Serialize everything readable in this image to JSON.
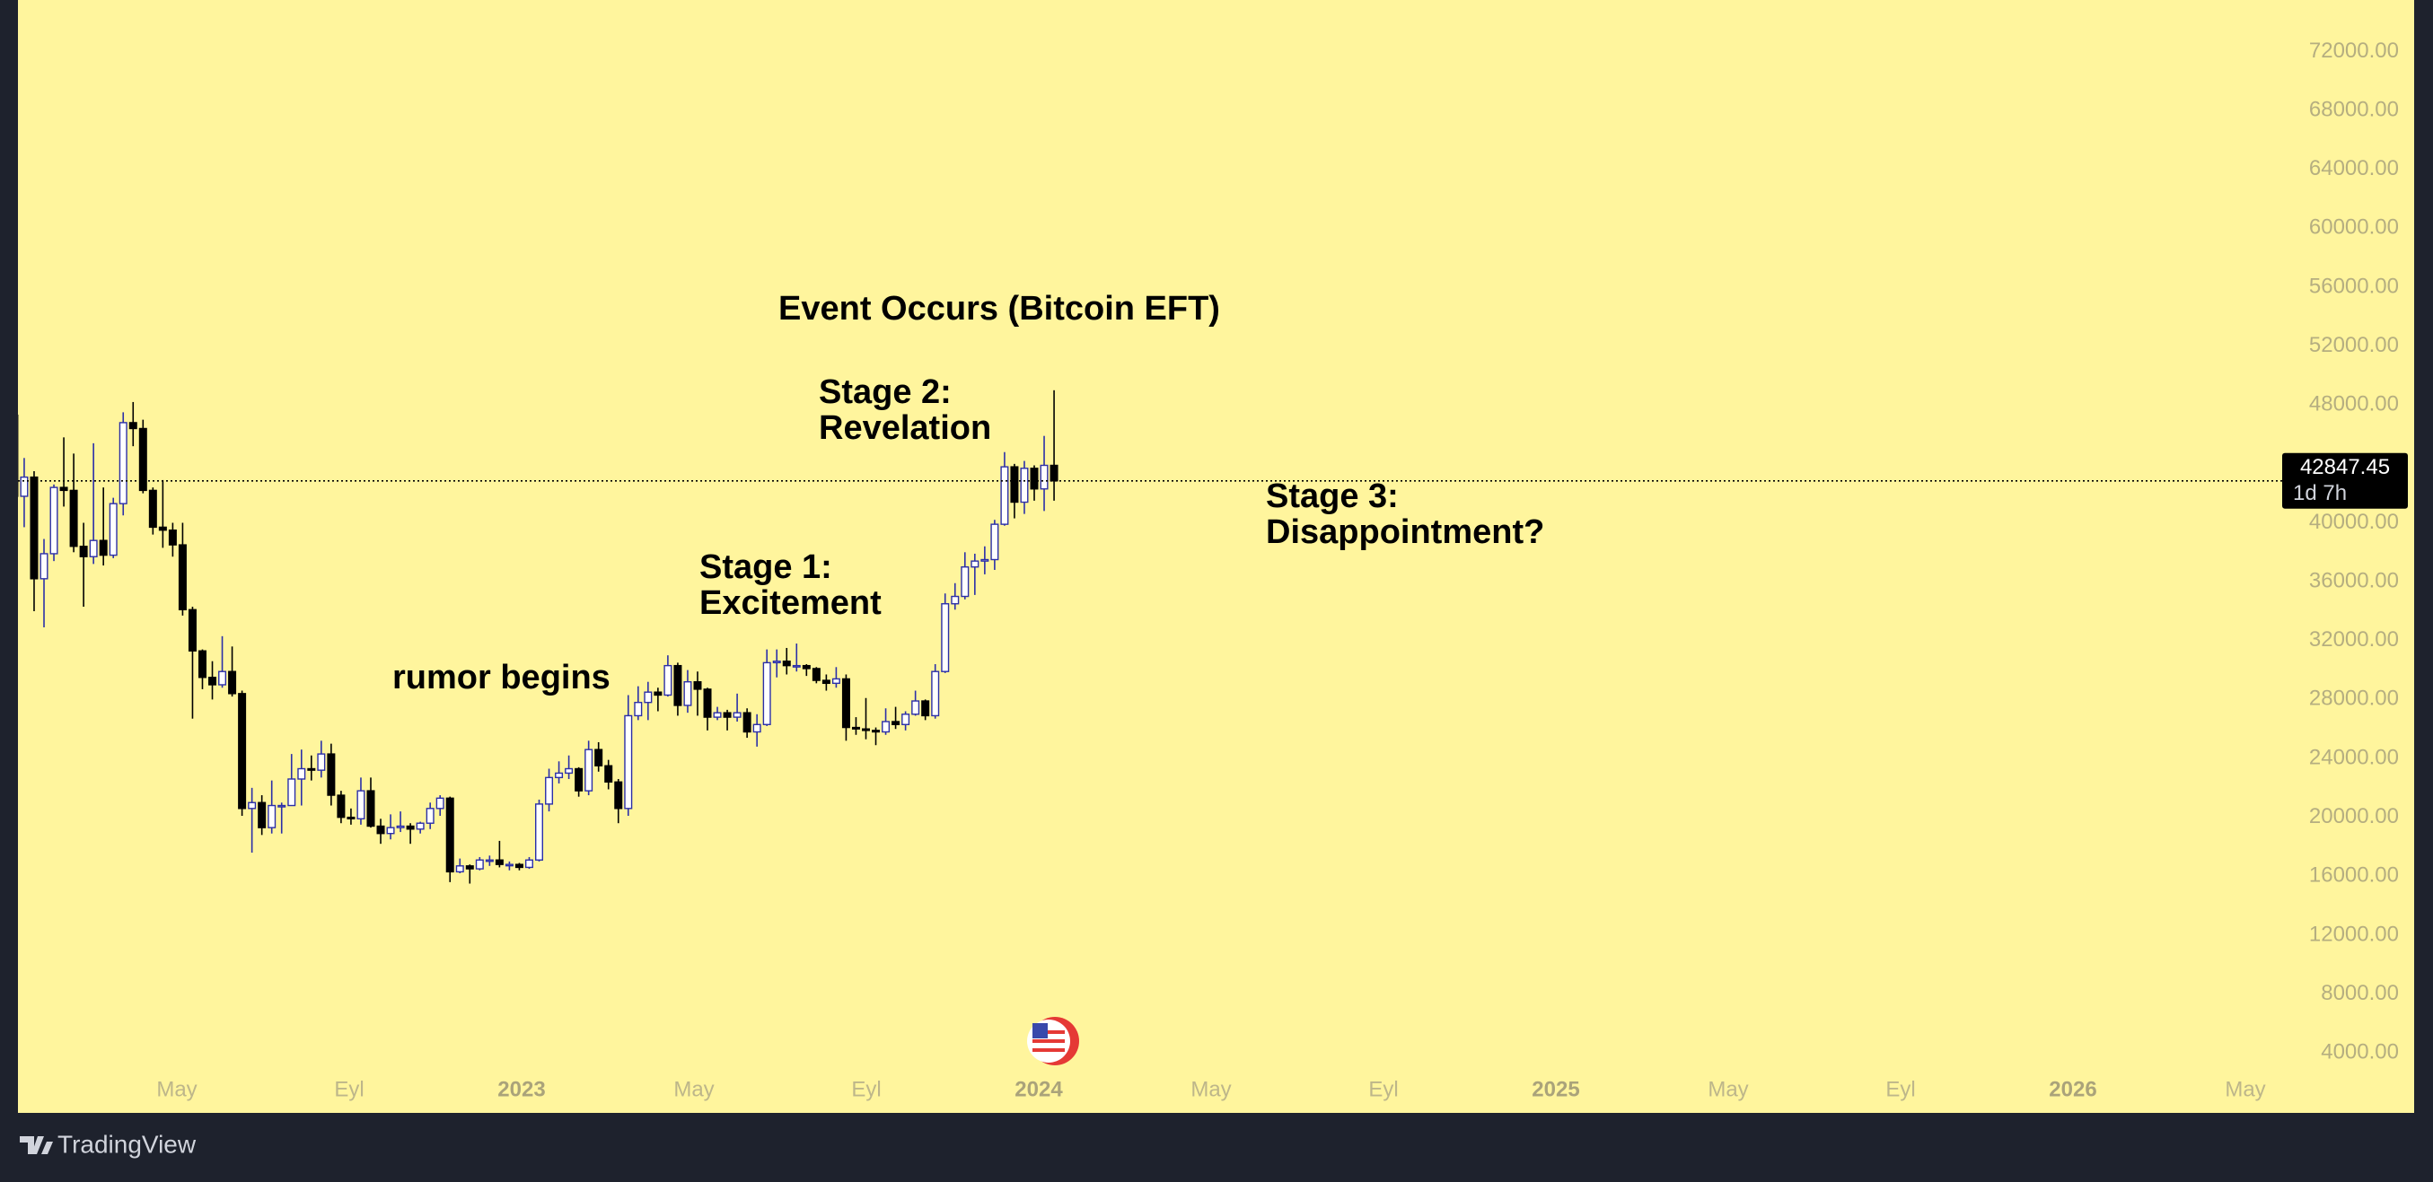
{
  "chart_data": {
    "type": "candlestick",
    "open": [
      47300,
      41800,
      43100,
      36200,
      37900,
      42400,
      42200,
      38400,
      37700,
      38800,
      37800,
      41300,
      46800,
      46400,
      42200,
      39700,
      39500,
      38500,
      34100,
      31300,
      29500,
      29000,
      29900,
      28400,
      20600,
      21000,
      19300,
      20800,
      20800,
      22600,
      23300,
      23200,
      24300,
      21500,
      20000,
      19900,
      21800,
      19400,
      18900,
      19300,
      19400,
      19200,
      19600,
      20600,
      21300,
      16300,
      16700,
      16500,
      17100,
      17100,
      16800,
      16800,
      16600,
      17100,
      20900,
      22700,
      23000,
      23300,
      21800,
      24600,
      23500,
      22400,
      20600,
      26900,
      27800,
      28500,
      28300,
      30300,
      27600,
      29200,
      28700,
      26800,
      27100,
      26800,
      27100,
      25800,
      26300,
      30500,
      30600,
      30300,
      30300,
      30100,
      29300,
      29100,
      29400,
      26100,
      26000,
      25900,
      25800,
      26500,
      26300,
      27000,
      27900,
      26900,
      29900,
      34500,
      35000,
      37000,
      37400,
      37500,
      39900,
      43800,
      41400,
      43700,
      42300,
      43900
    ],
    "high": [
      47900,
      44400,
      43500,
      38900,
      42600,
      45800,
      44700,
      40000,
      45400,
      42400,
      41700,
      47500,
      48200,
      47000,
      42400,
      42900,
      40000,
      40000,
      34300,
      31400,
      30600,
      32300,
      31600,
      28600,
      22000,
      21500,
      22500,
      21000,
      24300,
      24600,
      24200,
      25200,
      25000,
      21800,
      20600,
      22700,
      22700,
      19900,
      20200,
      20400,
      19600,
      19700,
      21000,
      21500,
      21400,
      17200,
      16800,
      17300,
      17400,
      18400,
      17000,
      16900,
      17300,
      21200,
      23300,
      23800,
      24200,
      23400,
      25200,
      25100,
      23900,
      22600,
      28300,
      28900,
      29200,
      28800,
      31000,
      30500,
      30000,
      29900,
      28800,
      27500,
      27300,
      28400,
      27400,
      27000,
      31400,
      31400,
      31500,
      31800,
      30400,
      30200,
      29700,
      30200,
      29700,
      26800,
      28100,
      26100,
      27400,
      27500,
      27200,
      28600,
      28000,
      30400,
      35200,
      35900,
      38000,
      37900,
      38400,
      40200,
      44800,
      44000,
      44200,
      43900,
      45900,
      49000
    ],
    "low": [
      40600,
      39700,
      34000,
      32900,
      37400,
      41100,
      38000,
      34300,
      37200,
      37100,
      37600,
      40500,
      45200,
      42000,
      39200,
      38300,
      37700,
      33700,
      26700,
      28700,
      28000,
      28800,
      28200,
      20100,
      17600,
      18800,
      18900,
      18900,
      20800,
      20800,
      22500,
      22700,
      20800,
      19600,
      19500,
      19500,
      19300,
      18200,
      18500,
      19000,
      18200,
      18900,
      19200,
      20100,
      15600,
      16200,
      15500,
      16400,
      16700,
      16600,
      16400,
      16400,
      16500,
      17000,
      20400,
      22300,
      22600,
      21400,
      21500,
      23100,
      21900,
      19600,
      20100,
      26600,
      26600,
      27200,
      28200,
      26900,
      27100,
      26900,
      25900,
      26600,
      25900,
      26500,
      25400,
      24800,
      26200,
      29500,
      29700,
      29900,
      29600,
      29100,
      28600,
      28800,
      25200,
      25600,
      25300,
      24900,
      25600,
      26000,
      25900,
      26900,
      26600,
      26700,
      29800,
      34100,
      34800,
      35100,
      36500,
      36800,
      39800,
      40300,
      40600,
      41500,
      40800,
      41500
    ],
    "close": [
      41800,
      43100,
      36200,
      37900,
      42400,
      42200,
      38400,
      37700,
      38800,
      37800,
      41300,
      46800,
      46400,
      42200,
      39700,
      39500,
      38500,
      34100,
      31300,
      29500,
      29000,
      29900,
      28400,
      20600,
      21000,
      19300,
      20800,
      20800,
      22600,
      23300,
      23200,
      24300,
      21500,
      20000,
      19900,
      21800,
      19400,
      18900,
      19300,
      19400,
      19200,
      19600,
      20600,
      21300,
      16300,
      16700,
      16500,
      17100,
      17100,
      16800,
      16800,
      16600,
      17100,
      20900,
      22700,
      23000,
      23300,
      21800,
      24600,
      23500,
      22400,
      20600,
      26900,
      27800,
      28500,
      28300,
      30300,
      27600,
      29200,
      28700,
      26800,
      27100,
      26800,
      27100,
      25800,
      26300,
      30500,
      30600,
      30300,
      30300,
      30100,
      29300,
      29100,
      29400,
      26100,
      26000,
      25900,
      25800,
      26500,
      26300,
      27000,
      27900,
      26900,
      29900,
      34500,
      35000,
      37000,
      37400,
      37500,
      39900,
      43800,
      41400,
      43700,
      42300,
      43900,
      42847.45
    ],
    "up_color": "#2b2fa8",
    "down_color": "#000000",
    "ylim": [
      2000,
      75500
    ],
    "yticks": [
      {
        "value": 4000,
        "label": "4000.00"
      },
      {
        "value": 8000,
        "label": "8000.00"
      },
      {
        "value": 12000,
        "label": "12000.00"
      },
      {
        "value": 16000,
        "label": "16000.00"
      },
      {
        "value": 20000,
        "label": "20000.00"
      },
      {
        "value": 24000,
        "label": "24000.00"
      },
      {
        "value": 28000,
        "label": "28000.00"
      },
      {
        "value": 32000,
        "label": "32000.00"
      },
      {
        "value": 36000,
        "label": "36000.00"
      },
      {
        "value": 40000,
        "label": "40000.00"
      },
      {
        "value": 44000,
        "label": "44000.00"
      },
      {
        "value": 48000,
        "label": "48000.00"
      },
      {
        "value": 52000,
        "label": "52000.00"
      },
      {
        "value": 56000,
        "label": "56000.00"
      },
      {
        "value": 60000,
        "label": "60000.00"
      },
      {
        "value": 64000,
        "label": "64000.00"
      },
      {
        "value": 68000,
        "label": "68000.00"
      },
      {
        "value": 72000,
        "label": "72000.00"
      }
    ],
    "xtick_labels": [
      "May",
      "Eyl",
      "2023",
      "May",
      "Eyl",
      "2024",
      "May",
      "Eyl",
      "2025",
      "May",
      "Eyl",
      "2026",
      "May"
    ],
    "last_price": 42847.45,
    "countdown": "1d 7h",
    "annotations": [
      [
        "Event Occurs (Bitcoin EFT)"
      ],
      [
        "Stage 2:",
        "Revelation"
      ],
      [
        "Stage 1:",
        "Excitement"
      ],
      [
        "rumor begins"
      ],
      [
        "Stage 3:",
        "Disappointment?"
      ]
    ],
    "brand": "TradingView"
  }
}
